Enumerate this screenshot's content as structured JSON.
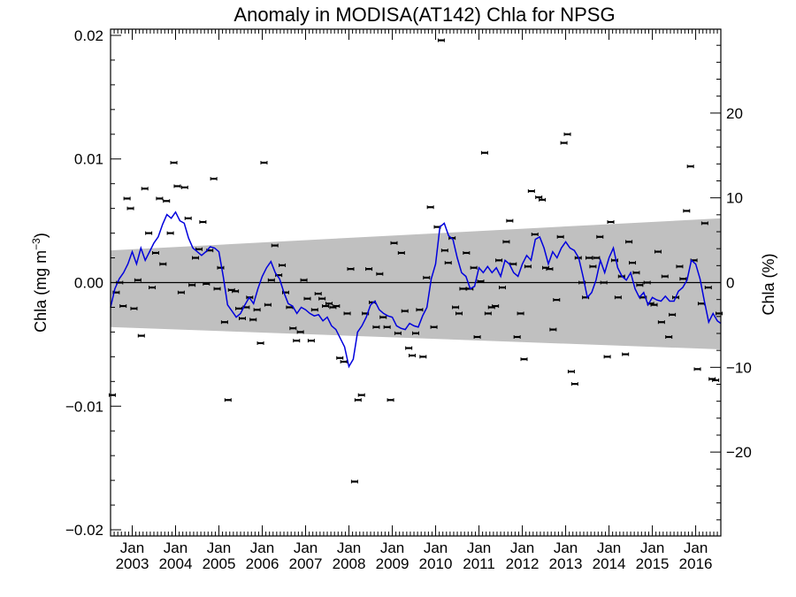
{
  "chart_data": {
    "type": "scatter",
    "title": "Anomaly in MODISA(AT142) Chla for NPSG",
    "ylabel_left_main": "Chla (mg m",
    "ylabel_left_sup": "−3",
    "ylabel_left_end": ")",
    "ylabel_right": "Chla (%)",
    "xlim": [
      2002.5,
      2016.58
    ],
    "ylim": [
      -0.0205,
      0.0205
    ],
    "ylim_right_percent": [
      -29.9,
      29.9
    ],
    "x_ticks": [
      {
        "month": "Jan",
        "year": "2003",
        "x": 2003.0
      },
      {
        "month": "Jan",
        "year": "2004",
        "x": 2004.0
      },
      {
        "month": "Jan",
        "year": "2005",
        "x": 2005.0
      },
      {
        "month": "Jan",
        "year": "2006",
        "x": 2006.0
      },
      {
        "month": "Jan",
        "year": "2007",
        "x": 2007.0
      },
      {
        "month": "Jan",
        "year": "2008",
        "x": 2008.0
      },
      {
        "month": "Jan",
        "year": "2009",
        "x": 2009.0
      },
      {
        "month": "Jan",
        "year": "2010",
        "x": 2010.0
      },
      {
        "month": "Jan",
        "year": "2011",
        "x": 2011.0
      },
      {
        "month": "Jan",
        "year": "2012",
        "x": 2012.0
      },
      {
        "month": "Jan",
        "year": "2013",
        "x": 2013.0
      },
      {
        "month": "Jan",
        "year": "2014",
        "x": 2014.0
      },
      {
        "month": "Jan",
        "year": "2015",
        "x": 2015.0
      },
      {
        "month": "Jan",
        "year": "2016",
        "x": 2016.0
      }
    ],
    "y_ticks_left": [
      {
        "label": "0.02",
        "v": 0.02
      },
      {
        "label": "0.01",
        "v": 0.01
      },
      {
        "label": "0.00",
        "v": 0.0
      },
      {
        "label": "−0.01",
        "v": -0.01
      },
      {
        "label": "−0.02",
        "v": -0.02
      }
    ],
    "y_ticks_right": [
      {
        "label": "20",
        "v": 20
      },
      {
        "label": "10",
        "v": 10
      },
      {
        "label": "0",
        "v": 0
      },
      {
        "label": "−10",
        "v": -10
      },
      {
        "label": "−20",
        "v": -20
      }
    ],
    "band_color": "#c0c0c0",
    "line_color": "#0000dd",
    "point_color": "#000000",
    "band": {
      "x": [
        2002.5,
        2016.58
      ],
      "upper": [
        0.0026,
        0.0052
      ],
      "lower": [
        -0.0036,
        -0.0054
      ]
    },
    "monthly_points": [
      {
        "x": 2002.54,
        "y": -0.0091
      },
      {
        "x": 2002.63,
        "y": -0.0008
      },
      {
        "x": 2002.71,
        "y": 0.0
      },
      {
        "x": 2002.79,
        "y": -0.0019
      },
      {
        "x": 2002.88,
        "y": 0.0068
      },
      {
        "x": 2002.96,
        "y": 0.006
      },
      {
        "x": 2003.04,
        "y": -0.0021
      },
      {
        "x": 2003.13,
        "y": 0.0002
      },
      {
        "x": 2003.21,
        "y": -0.0043
      },
      {
        "x": 2003.29,
        "y": 0.0076
      },
      {
        "x": 2003.38,
        "y": 0.004
      },
      {
        "x": 2003.46,
        "y": -0.0004
      },
      {
        "x": 2003.54,
        "y": 0.0024
      },
      {
        "x": 2003.63,
        "y": 0.0068
      },
      {
        "x": 2003.71,
        "y": 0.0015
      },
      {
        "x": 2003.79,
        "y": 0.0066
      },
      {
        "x": 2003.88,
        "y": 0.004
      },
      {
        "x": 2003.96,
        "y": 0.0097
      },
      {
        "x": 2004.04,
        "y": 0.0078
      },
      {
        "x": 2004.13,
        "y": -0.0008
      },
      {
        "x": 2004.21,
        "y": 0.0077
      },
      {
        "x": 2004.29,
        "y": 0.0052
      },
      {
        "x": 2004.38,
        "y": -0.0002
      },
      {
        "x": 2004.46,
        "y": 0.002
      },
      {
        "x": 2004.54,
        "y": 0.0027
      },
      {
        "x": 2004.63,
        "y": 0.0049
      },
      {
        "x": 2004.71,
        "y": -0.0001
      },
      {
        "x": 2004.79,
        "y": 0.0026
      },
      {
        "x": 2004.88,
        "y": 0.0084
      },
      {
        "x": 2004.96,
        "y": -0.0005
      },
      {
        "x": 2005.04,
        "y": 0.0012
      },
      {
        "x": 2005.13,
        "y": -0.0032
      },
      {
        "x": 2005.21,
        "y": -0.0095
      },
      {
        "x": 2005.29,
        "y": -0.0006
      },
      {
        "x": 2005.38,
        "y": -0.0007
      },
      {
        "x": 2005.46,
        "y": -0.0021
      },
      {
        "x": 2005.54,
        "y": -0.0029
      },
      {
        "x": 2005.63,
        "y": -0.002
      },
      {
        "x": 2005.71,
        "y": -0.0012
      },
      {
        "x": 2005.79,
        "y": -0.003
      },
      {
        "x": 2005.88,
        "y": -0.0022
      },
      {
        "x": 2005.96,
        "y": -0.0049
      },
      {
        "x": 2006.04,
        "y": 0.0097
      },
      {
        "x": 2006.13,
        "y": -0.0018
      },
      {
        "x": 2006.21,
        "y": 0.0002
      },
      {
        "x": 2006.29,
        "y": 0.003
      },
      {
        "x": 2006.38,
        "y": 0.0006
      },
      {
        "x": 2006.46,
        "y": 0.0014
      },
      {
        "x": 2006.54,
        "y": -0.0008
      },
      {
        "x": 2006.63,
        "y": -0.002
      },
      {
        "x": 2006.71,
        "y": -0.0037
      },
      {
        "x": 2006.79,
        "y": -0.0047
      },
      {
        "x": 2006.88,
        "y": -0.004
      },
      {
        "x": 2006.96,
        "y": 0.0002
      },
      {
        "x": 2007.04,
        "y": -0.0013
      },
      {
        "x": 2007.13,
        "y": -0.0047
      },
      {
        "x": 2007.21,
        "y": -0.0022
      },
      {
        "x": 2007.29,
        "y": -0.0009
      },
      {
        "x": 2007.38,
        "y": -0.0013
      },
      {
        "x": 2007.46,
        "y": -0.0019
      },
      {
        "x": 2007.54,
        "y": -0.0017
      },
      {
        "x": 2007.63,
        "y": -0.002
      },
      {
        "x": 2007.71,
        "y": -0.0019
      },
      {
        "x": 2007.79,
        "y": -0.0061
      },
      {
        "x": 2007.88,
        "y": -0.0064
      },
      {
        "x": 2007.96,
        "y": -0.0025
      },
      {
        "x": 2008.04,
        "y": 0.0011
      },
      {
        "x": 2008.13,
        "y": -0.0161
      },
      {
        "x": 2008.21,
        "y": -0.0095
      },
      {
        "x": 2008.29,
        "y": -0.0091
      },
      {
        "x": 2008.38,
        "y": -0.0025
      },
      {
        "x": 2008.46,
        "y": 0.0011
      },
      {
        "x": 2008.54,
        "y": -0.0016
      },
      {
        "x": 2008.63,
        "y": -0.0036
      },
      {
        "x": 2008.71,
        "y": 0.0007
      },
      {
        "x": 2008.79,
        "y": -0.0028
      },
      {
        "x": 2008.88,
        "y": -0.0036
      },
      {
        "x": 2008.96,
        "y": -0.0095
      },
      {
        "x": 2009.04,
        "y": 0.0032
      },
      {
        "x": 2009.13,
        "y": -0.0041
      },
      {
        "x": 2009.21,
        "y": 0.0024
      },
      {
        "x": 2009.29,
        "y": -0.0023
      },
      {
        "x": 2009.38,
        "y": -0.0053
      },
      {
        "x": 2009.46,
        "y": -0.0059
      },
      {
        "x": 2009.54,
        "y": -0.0041
      },
      {
        "x": 2009.63,
        "y": -0.0022
      },
      {
        "x": 2009.71,
        "y": -0.006
      },
      {
        "x": 2009.79,
        "y": 0.0004
      },
      {
        "x": 2009.88,
        "y": 0.0061
      },
      {
        "x": 2009.96,
        "y": -0.0036
      },
      {
        "x": 2010.04,
        "y": 0.0045
      },
      {
        "x": 2010.13,
        "y": 0.0196
      },
      {
        "x": 2010.21,
        "y": 0.0026
      },
      {
        "x": 2010.29,
        "y": 0.0016
      },
      {
        "x": 2010.38,
        "y": 0.0036
      },
      {
        "x": 2010.46,
        "y": -0.002
      },
      {
        "x": 2010.54,
        "y": -0.0025
      },
      {
        "x": 2010.63,
        "y": -0.0005
      },
      {
        "x": 2010.71,
        "y": 0.0024
      },
      {
        "x": 2010.79,
        "y": -0.0005
      },
      {
        "x": 2010.88,
        "y": 0.0012
      },
      {
        "x": 2010.96,
        "y": -0.0044
      },
      {
        "x": 2011.04,
        "y": 0.0001
      },
      {
        "x": 2011.13,
        "y": 0.0105
      },
      {
        "x": 2011.21,
        "y": -0.0025
      },
      {
        "x": 2011.29,
        "y": -0.002
      },
      {
        "x": 2011.38,
        "y": -0.0019
      },
      {
        "x": 2011.46,
        "y": 0.0018
      },
      {
        "x": 2011.54,
        "y": -0.0004
      },
      {
        "x": 2011.63,
        "y": 0.0033
      },
      {
        "x": 2011.71,
        "y": 0.005
      },
      {
        "x": 2011.79,
        "y": 0.0015
      },
      {
        "x": 2011.88,
        "y": -0.0044
      },
      {
        "x": 2011.96,
        "y": -0.0025
      },
      {
        "x": 2012.04,
        "y": -0.0062
      },
      {
        "x": 2012.13,
        "y": 0.0013
      },
      {
        "x": 2012.21,
        "y": 0.0074
      },
      {
        "x": 2012.29,
        "y": 0.0039
      },
      {
        "x": 2012.38,
        "y": 0.0069
      },
      {
        "x": 2012.46,
        "y": 0.0067
      },
      {
        "x": 2012.54,
        "y": 0.0012
      },
      {
        "x": 2012.63,
        "y": 0.0011
      },
      {
        "x": 2012.71,
        "y": -0.0038
      },
      {
        "x": 2012.79,
        "y": -0.0014
      },
      {
        "x": 2012.88,
        "y": 0.0037
      },
      {
        "x": 2012.96,
        "y": 0.0113
      },
      {
        "x": 2013.04,
        "y": 0.012
      },
      {
        "x": 2013.13,
        "y": -0.0072
      },
      {
        "x": 2013.21,
        "y": -0.0082
      },
      {
        "x": 2013.29,
        "y": 0.002
      },
      {
        "x": 2013.38,
        "y": 0.0
      },
      {
        "x": 2013.46,
        "y": -0.0012
      },
      {
        "x": 2013.54,
        "y": 0.002
      },
      {
        "x": 2013.63,
        "y": 0.0013
      },
      {
        "x": 2013.71,
        "y": 0.002
      },
      {
        "x": 2013.79,
        "y": 0.0037
      },
      {
        "x": 2013.88,
        "y": 0.0
      },
      {
        "x": 2013.96,
        "y": -0.006
      },
      {
        "x": 2014.04,
        "y": 0.0049
      },
      {
        "x": 2014.13,
        "y": 0.0018
      },
      {
        "x": 2014.21,
        "y": -0.0012
      },
      {
        "x": 2014.29,
        "y": 0.0005
      },
      {
        "x": 2014.38,
        "y": -0.0058
      },
      {
        "x": 2014.46,
        "y": 0.0033
      },
      {
        "x": 2014.54,
        "y": 0.0016
      },
      {
        "x": 2014.63,
        "y": 0.0008
      },
      {
        "x": 2014.71,
        "y": -0.0002
      },
      {
        "x": 2014.79,
        "y": -0.0012
      },
      {
        "x": 2014.88,
        "y": 0.0
      },
      {
        "x": 2014.96,
        "y": -0.0017
      },
      {
        "x": 2015.04,
        "y": -0.0018
      },
      {
        "x": 2015.13,
        "y": 0.0025
      },
      {
        "x": 2015.21,
        "y": -0.0032
      },
      {
        "x": 2015.29,
        "y": 0.0005
      },
      {
        "x": 2015.38,
        "y": -0.0044
      },
      {
        "x": 2015.46,
        "y": -0.0026
      },
      {
        "x": 2015.54,
        "y": -0.0012
      },
      {
        "x": 2015.63,
        "y": 0.0013
      },
      {
        "x": 2015.71,
        "y": 0.0003
      },
      {
        "x": 2015.79,
        "y": 0.0058
      },
      {
        "x": 2015.88,
        "y": 0.0094
      },
      {
        "x": 2015.96,
        "y": 0.0018
      },
      {
        "x": 2016.04,
        "y": -0.007
      },
      {
        "x": 2016.13,
        "y": -0.0017
      },
      {
        "x": 2016.21,
        "y": 0.0048
      },
      {
        "x": 2016.29,
        "y": -0.0004
      },
      {
        "x": 2016.38,
        "y": -0.0078
      },
      {
        "x": 2016.46,
        "y": -0.0079
      },
      {
        "x": 2016.54,
        "y": -0.0025
      }
    ],
    "smoothed_line": {
      "x": [
        2002.5,
        2002.6,
        2002.7,
        2002.8,
        2002.9,
        2003.0,
        2003.1,
        2003.2,
        2003.3,
        2003.4,
        2003.5,
        2003.6,
        2003.7,
        2003.8,
        2003.9,
        2004.0,
        2004.1,
        2004.2,
        2004.3,
        2004.4,
        2004.5,
        2004.6,
        2004.7,
        2004.8,
        2004.9,
        2005.0,
        2005.1,
        2005.2,
        2005.3,
        2005.4,
        2005.5,
        2005.6,
        2005.7,
        2005.8,
        2005.9,
        2006.0,
        2006.1,
        2006.2,
        2006.3,
        2006.4,
        2006.5,
        2006.6,
        2006.7,
        2006.8,
        2006.9,
        2007.0,
        2007.1,
        2007.2,
        2007.3,
        2007.4,
        2007.5,
        2007.6,
        2007.7,
        2007.8,
        2007.9,
        2008.0,
        2008.1,
        2008.2,
        2008.3,
        2008.4,
        2008.5,
        2008.6,
        2008.7,
        2008.8,
        2008.9,
        2009.0,
        2009.1,
        2009.2,
        2009.3,
        2009.4,
        2009.5,
        2009.6,
        2009.7,
        2009.8,
        2009.9,
        2010.0,
        2010.1,
        2010.2,
        2010.3,
        2010.4,
        2010.5,
        2010.6,
        2010.7,
        2010.8,
        2010.9,
        2011.0,
        2011.1,
        2011.2,
        2011.3,
        2011.4,
        2011.5,
        2011.6,
        2011.7,
        2011.8,
        2011.9,
        2012.0,
        2012.1,
        2012.2,
        2012.3,
        2012.4,
        2012.5,
        2012.6,
        2012.7,
        2012.8,
        2012.9,
        2013.0,
        2013.1,
        2013.2,
        2013.3,
        2013.4,
        2013.5,
        2013.6,
        2013.7,
        2013.8,
        2013.9,
        2014.0,
        2014.1,
        2014.2,
        2014.3,
        2014.4,
        2014.5,
        2014.6,
        2014.7,
        2014.8,
        2014.9,
        2015.0,
        2015.1,
        2015.2,
        2015.3,
        2015.4,
        2015.5,
        2015.6,
        2015.7,
        2015.8,
        2015.9,
        2016.0,
        2016.1,
        2016.2,
        2016.3,
        2016.4,
        2016.5,
        2016.58
      ],
      "y": [
        -0.002,
        -0.0005,
        0.0003,
        0.0008,
        0.0015,
        0.0025,
        0.0015,
        0.0028,
        0.0018,
        0.0025,
        0.0032,
        0.0037,
        0.0047,
        0.0055,
        0.0052,
        0.0057,
        0.005,
        0.0048,
        0.0036,
        0.0028,
        0.0025,
        0.0022,
        0.0025,
        0.0029,
        0.0028,
        0.0025,
        0.0005,
        -0.0018,
        -0.0023,
        -0.0028,
        -0.0025,
        -0.0018,
        -0.0012,
        -0.0017,
        -0.0005,
        0.0005,
        0.0012,
        0.0017,
        0.0008,
        0.0003,
        -0.0008,
        -0.0017,
        -0.0019,
        -0.0025,
        -0.002,
        -0.0022,
        -0.0025,
        -0.0027,
        -0.0026,
        -0.0031,
        -0.0028,
        -0.0035,
        -0.0038,
        -0.0045,
        -0.0052,
        -0.0068,
        -0.0062,
        -0.004,
        -0.0035,
        -0.0028,
        -0.0018,
        -0.0015,
        -0.0022,
        -0.0025,
        -0.0027,
        -0.0028,
        -0.0035,
        -0.0037,
        -0.0038,
        -0.0033,
        -0.0035,
        -0.0036,
        -0.0027,
        -0.002,
        0.0003,
        0.0015,
        0.0045,
        0.0048,
        0.0038,
        0.0035,
        0.002,
        0.0008,
        0.0005,
        -0.0005,
        -0.0003,
        0.0012,
        0.0008,
        0.0013,
        0.0008,
        0.0012,
        0.0005,
        0.0018,
        0.0015,
        0.0008,
        0.0005,
        0.0015,
        0.0022,
        0.0018,
        0.0035,
        0.0037,
        0.0028,
        0.0015,
        0.0025,
        0.002,
        0.0028,
        0.0033,
        0.0028,
        0.0026,
        0.002,
        0.0005,
        -0.0012,
        -0.0008,
        0.0002,
        0.0018,
        0.0008,
        0.002,
        0.0028,
        0.0012,
        0.0005,
        0.0002,
        0.0008,
        -0.0005,
        -0.0012,
        -0.0008,
        -0.0018,
        -0.0012,
        -0.0014,
        -0.0015,
        -0.0011,
        -0.0015,
        -0.0015,
        -0.0007,
        -0.0004,
        0.0002,
        0.0018,
        0.0015,
        0.0003,
        -0.0015,
        -0.0032,
        -0.0025,
        -0.0031,
        -0.0033
      ]
    }
  }
}
